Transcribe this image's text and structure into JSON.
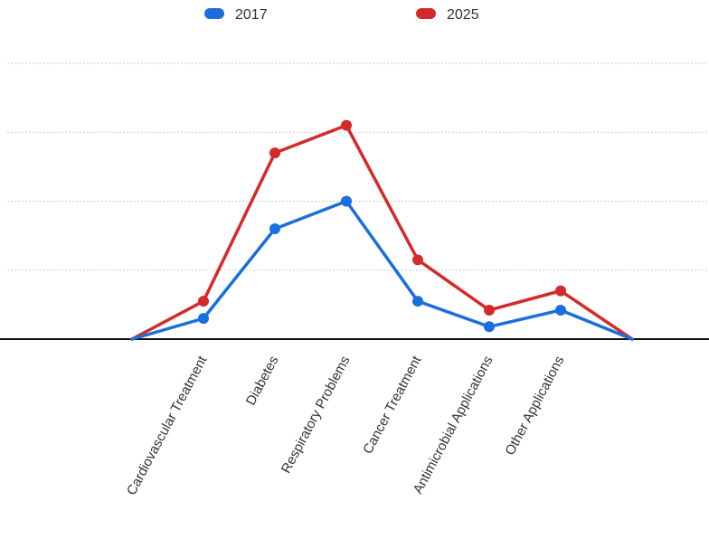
{
  "chart_data": {
    "type": "line",
    "categories": [
      "",
      "Cardiovascular Treatment",
      "Diabetes",
      "Respiratory Problems",
      "Cancer Treatment",
      "Antimicrobial Applications",
      "Other Applications",
      ""
    ],
    "series": [
      {
        "name": "2017",
        "values": [
          0,
          0.3,
          1.6,
          2.0,
          0.55,
          0.18,
          0.42,
          0
        ],
        "color": "#1a6fdc"
      },
      {
        "name": "2025",
        "values": [
          0,
          0.55,
          2.7,
          3.1,
          1.15,
          0.42,
          0.7,
          0
        ],
        "color": "#d42a2a"
      }
    ],
    "ylim": [
      0,
      4
    ],
    "y_gridlines": [
      1,
      2,
      3,
      4
    ],
    "grid": true,
    "legend_position": "top",
    "title": "",
    "xlabel": "",
    "ylabel": ""
  }
}
